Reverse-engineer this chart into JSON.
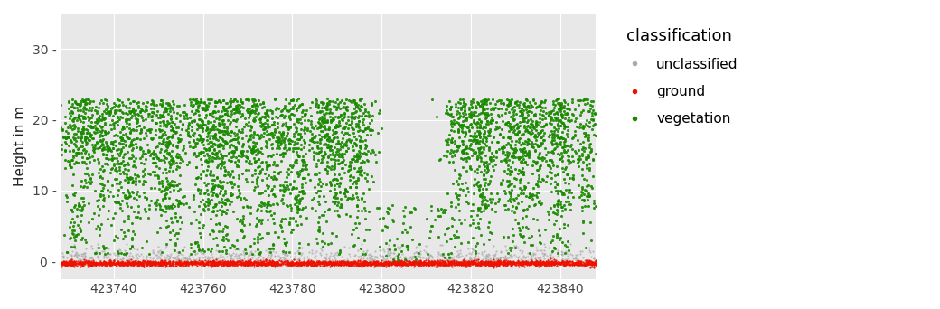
{
  "ylabel": "Height in m",
  "legend_title": "classification",
  "xlim": [
    423728,
    423848
  ],
  "ylim": [
    -2.5,
    35
  ],
  "yticks": [
    0,
    10,
    20,
    30
  ],
  "xticks": [
    423740,
    423760,
    423780,
    423800,
    423820,
    423840
  ],
  "bg_color": "#e8e8e8",
  "grid_color": "#ffffff",
  "unclassified_color": "#aaaaaa",
  "ground_color": "#ee1100",
  "vegetation_color": "#1a8a00",
  "x_range_start": 423728,
  "x_range_end": 423848,
  "seed": 7,
  "n_vegetation": 12000,
  "n_ground": 3000,
  "n_unclassified": 800
}
